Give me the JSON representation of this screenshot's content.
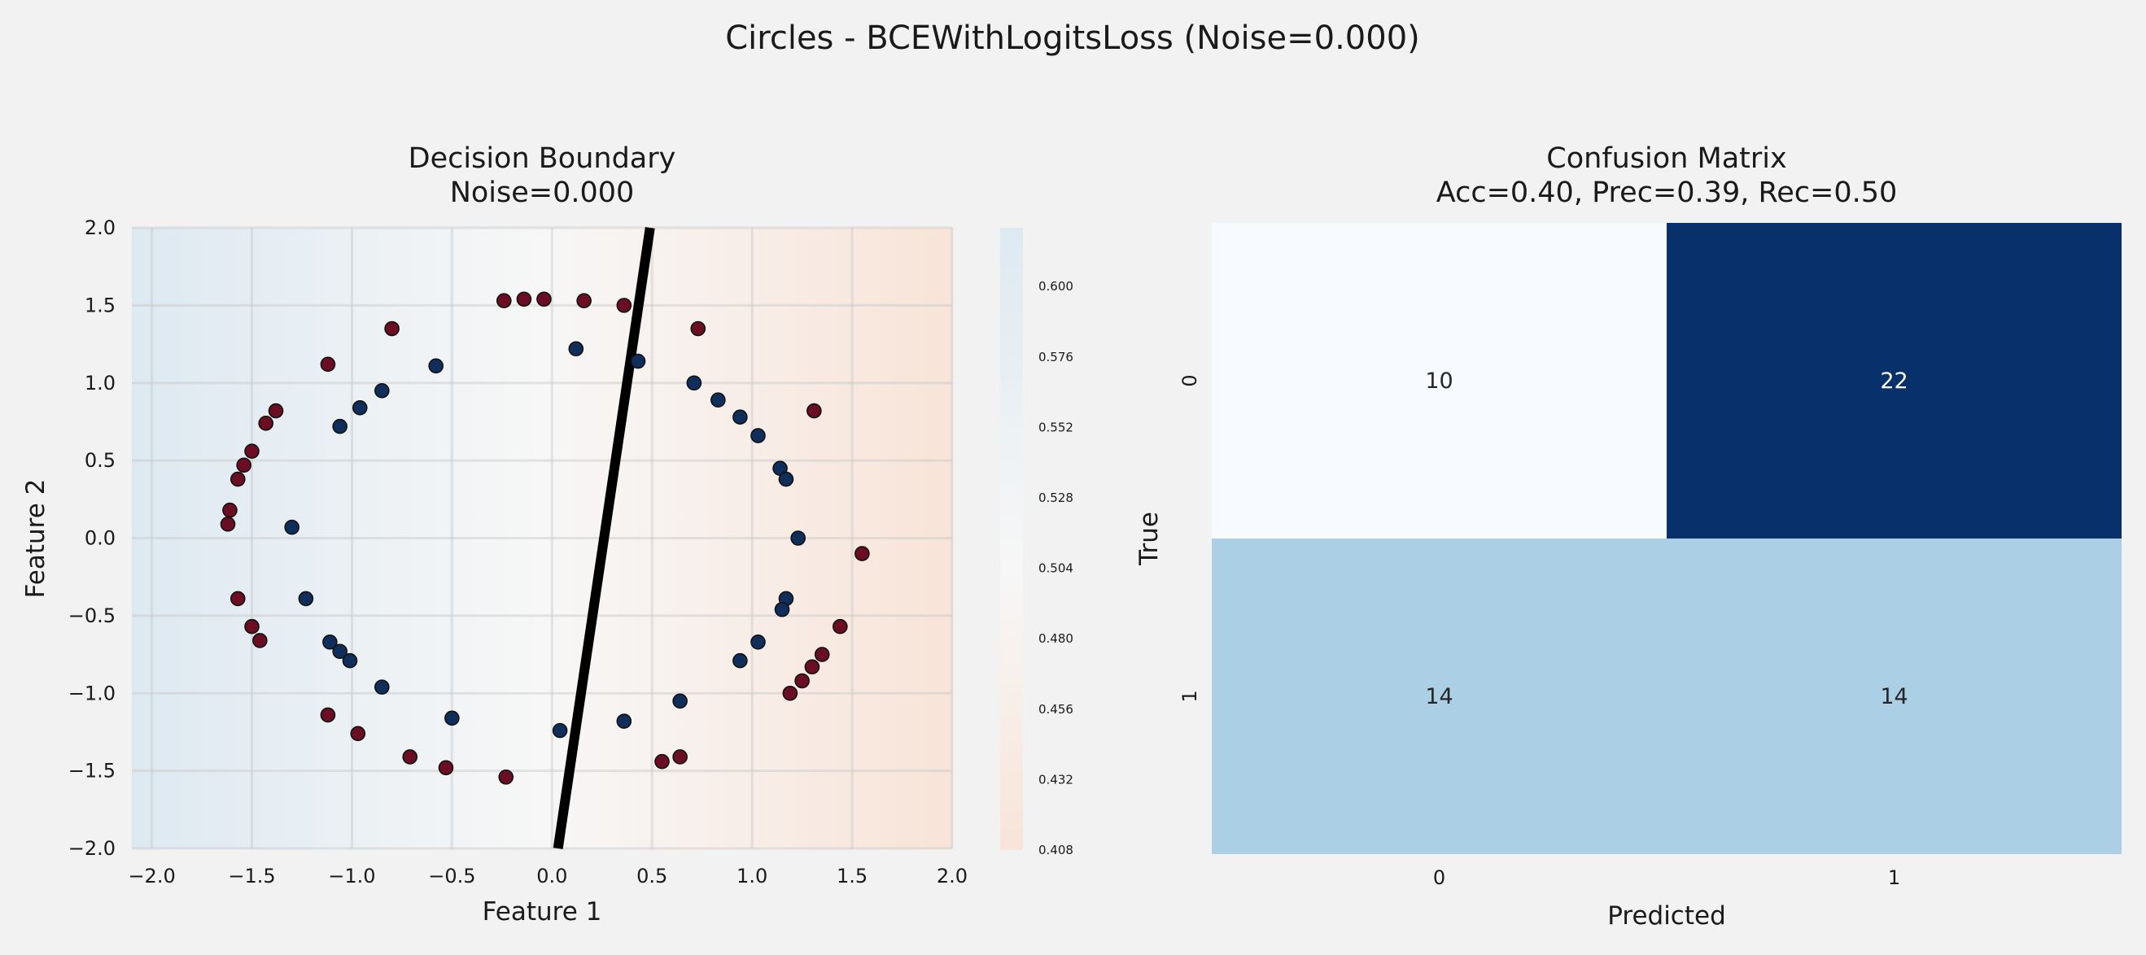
{
  "suptitle": "Circles - BCEWithLogitsLoss (Noise=0.000)",
  "colors": {
    "background": "#f2f2f2",
    "class0": "#0f2e5c",
    "class1": "#6b0d23",
    "boundary": "#000000",
    "prob_low": "#f8e4d8",
    "prob_mid": "#f7f7f7",
    "prob_high": "#dde9f1"
  },
  "chart_data": [
    {
      "type": "scatter",
      "title": "Decision Boundary",
      "subtitle": "Noise=0.000",
      "xlabel": "Feature 1",
      "ylabel": "Feature 2",
      "xlim": [
        -2.1,
        2.0
      ],
      "ylim": [
        -2.0,
        2.0
      ],
      "xticks": [
        "−2.0",
        "−1.5",
        "−1.0",
        "−0.5",
        "0.0",
        "0.5",
        "1.0",
        "1.5",
        "2.0"
      ],
      "yticks": [
        "−2.0",
        "−1.5",
        "−1.0",
        "−0.5",
        "0.0",
        "0.5",
        "1.0",
        "1.5",
        "2.0"
      ],
      "grid": true,
      "decision_boundary": [
        [
          0.03,
          -2.0
        ],
        [
          0.49,
          2.0
        ]
      ],
      "colorbar": {
        "range": [
          0.408,
          0.62
        ],
        "ticks": [
          "0.600",
          "0.576",
          "0.552",
          "0.528",
          "0.504",
          "0.480",
          "0.456",
          "0.432",
          "0.408"
        ]
      },
      "series": [
        {
          "class": 0,
          "points": [
            [
              -0.58,
              1.11
            ],
            [
              0.12,
              1.22
            ],
            [
              0.43,
              1.14
            ],
            [
              -0.85,
              0.95
            ],
            [
              -0.96,
              0.84
            ],
            [
              -1.06,
              0.72
            ],
            [
              0.71,
              1.0
            ],
            [
              0.83,
              0.89
            ],
            [
              0.94,
              0.78
            ],
            [
              1.03,
              0.66
            ],
            [
              1.14,
              0.45
            ],
            [
              1.17,
              0.38
            ],
            [
              -1.3,
              0.07
            ],
            [
              1.23,
              0.0
            ],
            [
              -1.23,
              -0.39
            ],
            [
              1.17,
              -0.39
            ],
            [
              1.15,
              -0.46
            ],
            [
              -1.11,
              -0.67
            ],
            [
              -1.06,
              -0.73
            ],
            [
              -1.01,
              -0.79
            ],
            [
              1.03,
              -0.67
            ],
            [
              0.94,
              -0.79
            ],
            [
              -0.85,
              -0.96
            ],
            [
              -0.5,
              -1.16
            ],
            [
              0.04,
              -1.24
            ],
            [
              0.36,
              -1.18
            ],
            [
              0.64,
              -1.05
            ]
          ]
        },
        {
          "class": 1,
          "points": [
            [
              -0.24,
              1.53
            ],
            [
              -0.14,
              1.54
            ],
            [
              -0.04,
              1.54
            ],
            [
              0.16,
              1.53
            ],
            [
              0.36,
              1.5
            ],
            [
              -0.8,
              1.35
            ],
            [
              0.73,
              1.35
            ],
            [
              -1.12,
              1.12
            ],
            [
              -1.38,
              0.82
            ],
            [
              -1.43,
              0.74
            ],
            [
              1.31,
              0.82
            ],
            [
              -1.5,
              0.56
            ],
            [
              -1.54,
              0.47
            ],
            [
              -1.57,
              0.38
            ],
            [
              -1.61,
              0.18
            ],
            [
              -1.62,
              0.09
            ],
            [
              1.55,
              -0.1
            ],
            [
              -1.57,
              -0.39
            ],
            [
              -1.5,
              -0.57
            ],
            [
              -1.46,
              -0.66
            ],
            [
              1.44,
              -0.57
            ],
            [
              1.35,
              -0.75
            ],
            [
              1.3,
              -0.83
            ],
            [
              1.25,
              -0.92
            ],
            [
              1.19,
              -1.0
            ],
            [
              -1.12,
              -1.14
            ],
            [
              -0.97,
              -1.26
            ],
            [
              -0.71,
              -1.41
            ],
            [
              -0.53,
              -1.48
            ],
            [
              -0.23,
              -1.54
            ],
            [
              0.55,
              -1.44
            ],
            [
              0.64,
              -1.41
            ]
          ]
        }
      ]
    },
    {
      "type": "heatmap",
      "title": "Confusion Matrix",
      "subtitle": "Acc=0.40, Prec=0.39, Rec=0.50",
      "xlabel": "Predicted",
      "ylabel": "True",
      "xticks": [
        "0",
        "1"
      ],
      "yticks": [
        "0",
        "1"
      ],
      "values": [
        [
          10,
          22
        ],
        [
          14,
          14
        ]
      ],
      "labels": [
        [
          "10",
          "22"
        ],
        [
          "14",
          "14"
        ]
      ],
      "cell_colors": [
        [
          "#f7fbff",
          "#08306b"
        ],
        [
          "#abd0e6",
          "#abd0e6"
        ]
      ],
      "text_colors": [
        [
          "#262626",
          "#ffffff"
        ],
        [
          "#262626",
          "#262626"
        ]
      ]
    }
  ]
}
